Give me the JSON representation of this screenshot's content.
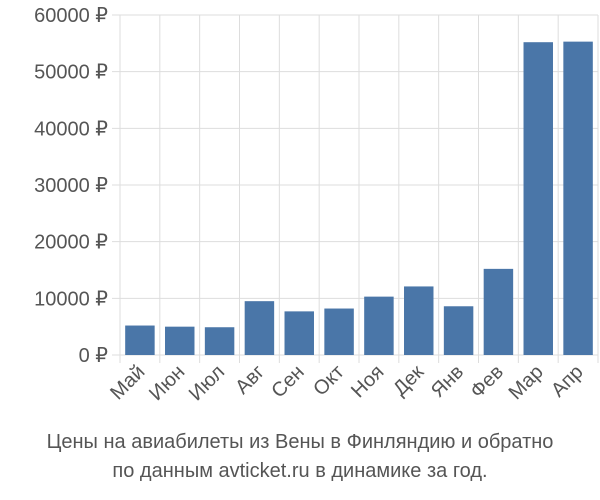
{
  "chart_data": {
    "type": "bar",
    "categories": [
      "Май",
      "Июн",
      "Июл",
      "Авг",
      "Сен",
      "Окт",
      "Ноя",
      "Дек",
      "Янв",
      "Фев",
      "Мар",
      "Апр"
    ],
    "values": [
      5200,
      5000,
      4900,
      9500,
      7700,
      8200,
      10300,
      12100,
      8600,
      15200,
      55200,
      55300
    ],
    "yticks": [
      0,
      10000,
      20000,
      30000,
      40000,
      50000,
      60000
    ],
    "ytick_labels": [
      "0 ₽",
      "10000 ₽",
      "20000 ₽",
      "30000 ₽",
      "40000 ₽",
      "50000 ₽",
      "60000 ₽"
    ],
    "ylim": [
      0,
      60000
    ],
    "grid": true,
    "legend": "none",
    "bar_color": "#4a76a8",
    "grid_color": "#dddddd",
    "axis_text_color": "#555555"
  },
  "caption": {
    "line1": "Цены на авиабилеты из Вены в Финляндию и обратно",
    "line2": "по данным avticket.ru в динамике за год."
  }
}
